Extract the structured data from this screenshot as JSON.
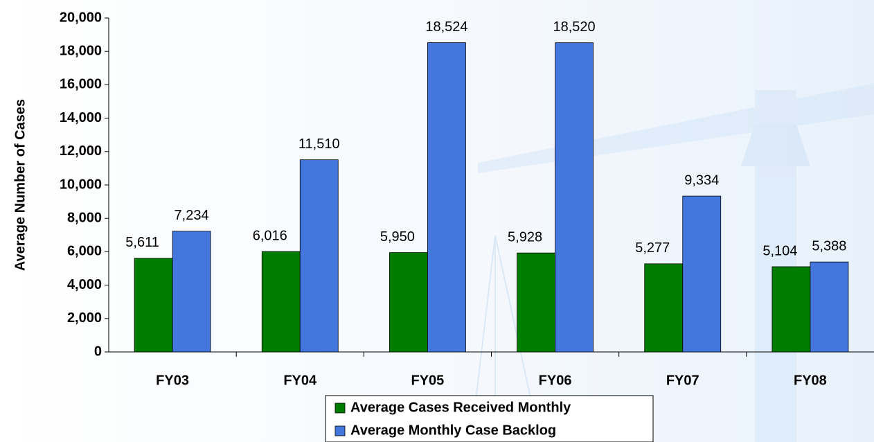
{
  "chart_data": {
    "type": "bar",
    "y_label": "Average Number of Cases",
    "categories": [
      "FY03",
      "FY04",
      "FY05",
      "FY06",
      "FY07",
      "FY08"
    ],
    "series": [
      {
        "name": "Average Cases Received Monthly",
        "color": "#007d00",
        "values": [
          5611,
          6016,
          5950,
          5928,
          5277,
          5104
        ],
        "value_labels": [
          "5,611",
          "6,016",
          "5,950",
          "5,928",
          "5,277",
          "5,104"
        ]
      },
      {
        "name": "Average Monthly Case Backlog",
        "color": "#4477dd",
        "values": [
          7234,
          11510,
          18524,
          18520,
          9334,
          5388
        ],
        "value_labels": [
          "7,234",
          "11,510",
          "18,524",
          "18,520",
          "9,334",
          "5,388"
        ]
      }
    ],
    "ylim": [
      0,
      20000
    ],
    "yticks": [
      0,
      {
        "value": 2000,
        "label": "2,000"
      },
      {
        "value": 4000,
        "label": "4,000"
      },
      {
        "value": 6000,
        "label": "6,000"
      },
      {
        "value": 8000,
        "label": "8,000"
      },
      {
        "value": 10000,
        "label": "10,000"
      },
      {
        "value": 12000,
        "label": "12,000"
      },
      {
        "value": 14000,
        "label": "14,000"
      },
      {
        "value": 16000,
        "label": "16,000"
      },
      {
        "value": 18000,
        "label": "18,000"
      },
      {
        "value": 20000,
        "label": "20,000"
      }
    ],
    "legend": "bottom"
  }
}
